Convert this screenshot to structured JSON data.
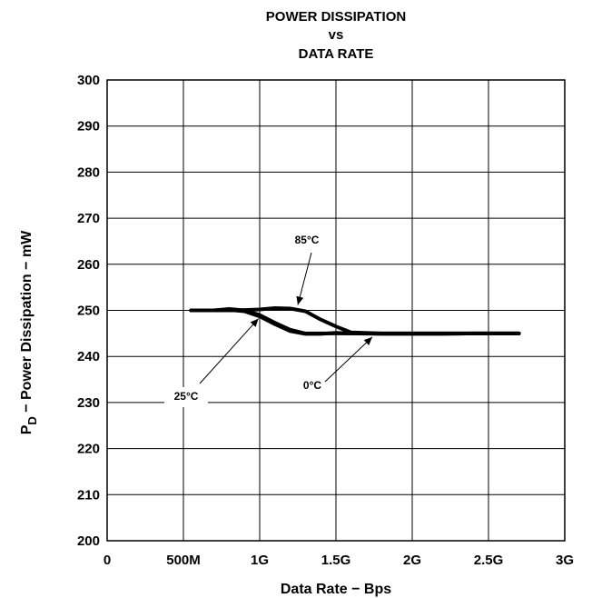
{
  "chart_data": {
    "type": "line",
    "title": [
      "POWER DISSIPATION",
      "vs",
      "DATA RATE"
    ],
    "xlabel": "Data Rate − Bps",
    "ylabel_main": "P",
    "ylabel_sub": "D",
    "ylabel_rest": " − Power Dissipation − mW",
    "xlim": [
      0,
      3
    ],
    "ylim": [
      200,
      300
    ],
    "x_ticks": [
      0,
      0.5,
      1,
      1.5,
      2,
      2.5,
      3
    ],
    "x_tick_labels": [
      "0",
      "500M",
      "1G",
      "1.5G",
      "2G",
      "2.5G",
      "3G"
    ],
    "y_ticks": [
      200,
      210,
      220,
      230,
      240,
      250,
      260,
      270,
      280,
      290,
      300
    ],
    "y_tick_labels": [
      "200",
      "210",
      "220",
      "230",
      "240",
      "250",
      "260",
      "270",
      "280",
      "290",
      "300"
    ],
    "grid": true,
    "series": [
      {
        "name": "85°C",
        "x": [
          0.55,
          0.7,
          0.85,
          1.0,
          1.1,
          1.2,
          1.3,
          1.4,
          1.5,
          1.6,
          1.8,
          2.0,
          2.2,
          2.4,
          2.7
        ],
        "y": [
          250,
          250,
          250,
          250.2,
          250.5,
          250.4,
          249.8,
          248.0,
          246.5,
          245.2,
          245.0,
          245.0,
          245.0,
          245.0,
          245.0
        ]
      },
      {
        "name": "25°C",
        "x": [
          0.55,
          0.7,
          0.8,
          0.9,
          1.0,
          1.1,
          1.2,
          1.3,
          1.4,
          1.5,
          1.6,
          1.8,
          2.0,
          2.2,
          2.4,
          2.7
        ],
        "y": [
          250,
          250,
          250.3,
          250.0,
          249.0,
          247.3,
          245.8,
          245.0,
          245.0,
          245.0,
          245.0,
          245.0,
          245.0,
          245.0,
          245.0,
          245.0
        ]
      },
      {
        "name": "0°C",
        "x": [
          0.55,
          0.7,
          0.8,
          0.9,
          1.0,
          1.1,
          1.2,
          1.3,
          1.4,
          1.5,
          1.6,
          1.8,
          2.0,
          2.2,
          2.4,
          2.7
        ],
        "y": [
          250,
          250,
          250.1,
          249.8,
          248.7,
          247.0,
          245.5,
          244.9,
          244.9,
          245.1,
          245.0,
          244.9,
          244.9,
          244.9,
          245.0,
          245.0
        ]
      }
    ],
    "annotations": [
      {
        "text": "85°C",
        "target_x": 1.25,
        "target_y": 250
      },
      {
        "text": "25°C",
        "target_x": 0.98,
        "target_y": 249
      },
      {
        "text": "0°C",
        "target_x": 1.75,
        "target_y": 245
      }
    ]
  }
}
